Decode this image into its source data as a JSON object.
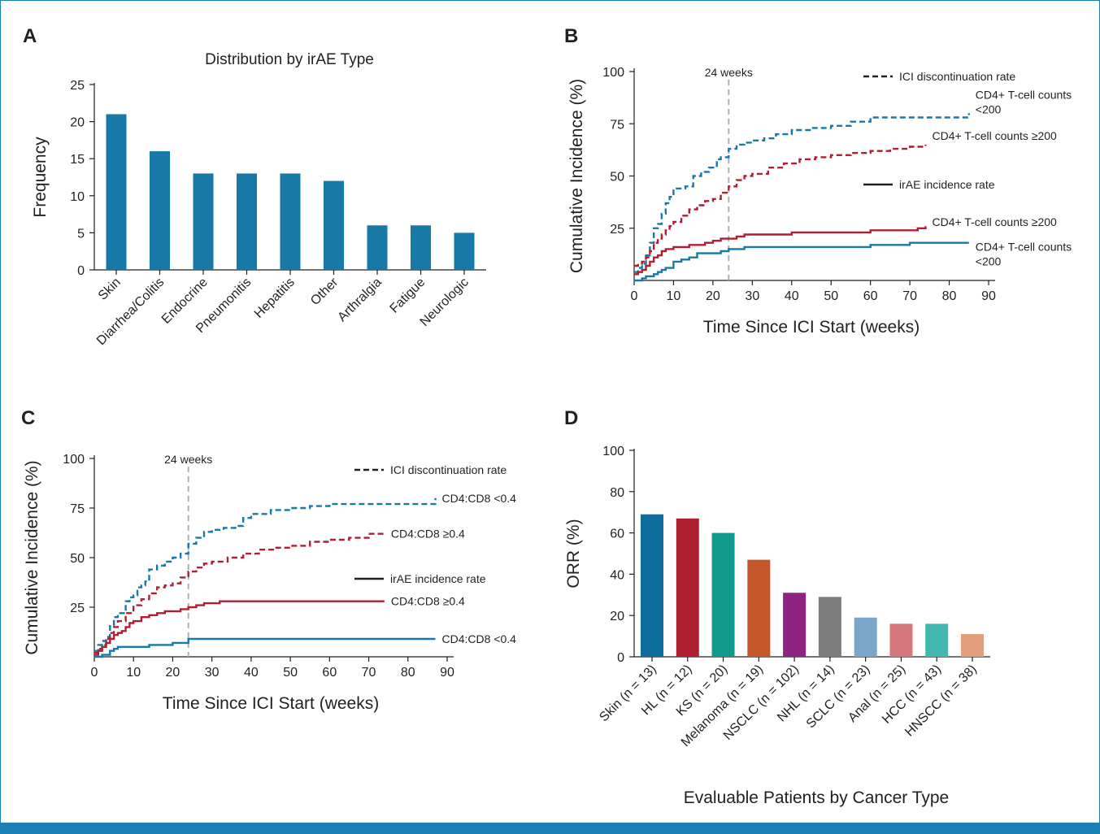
{
  "panels": {
    "a": {
      "letter": "A"
    },
    "b": {
      "letter": "B"
    },
    "c": {
      "letter": "C"
    },
    "d": {
      "letter": "D"
    }
  },
  "colors": {
    "blue": "#1679a8",
    "red": "#b01e30",
    "text": "#231f20",
    "frame": "#1a7fb4",
    "ref_line": "#aaaaaa"
  },
  "chart_data": [
    {
      "id": "A",
      "type": "bar",
      "title": "Distribution by irAE Type",
      "xlabel": "",
      "ylabel": "Frequency",
      "ylim": [
        0,
        25
      ],
      "yticks": [
        0,
        5,
        10,
        15,
        20,
        25
      ],
      "categories": [
        "Skin",
        "Diarrhea/Colitis",
        "Endocrine",
        "Pneumonitis",
        "Hepatitis",
        "Other",
        "Arthralgia",
        "Fatigue",
        "Neurologic"
      ],
      "values": [
        21,
        16,
        13,
        13,
        13,
        12,
        6,
        6,
        5
      ],
      "color": "#1679a8"
    },
    {
      "id": "B",
      "type": "line",
      "xlabel": "Time Since ICI Start (weeks)",
      "ylabel": "Cumulative Incidence (%)",
      "xlim": [
        0,
        90
      ],
      "ylim": [
        0,
        100
      ],
      "xticks": [
        0,
        10,
        20,
        30,
        40,
        50,
        60,
        70,
        80,
        90
      ],
      "yticks": [
        25,
        50,
        75,
        100
      ],
      "reference_line": {
        "x": 24,
        "label": "24 weeks"
      },
      "legend": {
        "dashed_label": "ICI discontinuation rate",
        "solid_label": "irAE incidence rate"
      },
      "series": [
        {
          "name": "CD4+ T-cell counts <200",
          "line_label": [
            "CD4+ T-cell counts",
            "<200"
          ],
          "style": "dashed",
          "color": "#1679a8",
          "x": [
            0,
            1,
            2,
            3,
            4,
            5,
            6,
            7,
            8,
            9,
            10,
            11,
            12,
            13,
            15,
            17,
            19,
            21,
            22,
            24,
            26,
            28,
            30,
            33,
            36,
            40,
            45,
            50,
            55,
            60,
            65,
            70,
            75,
            80,
            84,
            85
          ],
          "y": [
            4,
            6,
            8,
            12,
            18,
            25,
            27,
            32,
            37,
            40,
            44,
            44,
            44,
            45,
            50,
            52,
            54,
            58,
            59,
            63,
            65,
            66,
            67,
            68,
            70,
            72,
            73,
            74,
            76,
            78,
            78,
            78,
            78,
            78,
            78,
            80
          ]
        },
        {
          "name": "CD4+ T-cell counts ≥200",
          "line_label": [
            "CD4+ T-cell counts ≥200"
          ],
          "style": "dashed",
          "color": "#b01e30",
          "x": [
            0,
            1,
            2,
            3,
            4,
            5,
            6,
            7,
            8,
            9,
            10,
            12,
            14,
            16,
            18,
            20,
            22,
            24,
            26,
            28,
            30,
            34,
            38,
            42,
            46,
            50,
            55,
            60,
            65,
            70,
            74
          ],
          "y": [
            7,
            8,
            9,
            11,
            14,
            18,
            20,
            22,
            24,
            26,
            28,
            31,
            34,
            36,
            38,
            39,
            42,
            45,
            48,
            50,
            51,
            54,
            56,
            58,
            59,
            60,
            61,
            62,
            63,
            64,
            65
          ]
        },
        {
          "name": "CD4+ T-cell counts ≥200",
          "line_label": [
            "CD4+ T-cell counts ≥200"
          ],
          "style": "solid",
          "color": "#b01e30",
          "x": [
            0,
            1,
            2,
            3,
            4,
            5,
            6,
            7,
            8,
            10,
            12,
            14,
            16,
            18,
            20,
            22,
            24,
            26,
            28,
            30,
            40,
            50,
            57,
            60,
            70,
            72,
            74
          ],
          "y": [
            3,
            4,
            5,
            7,
            9,
            11,
            12,
            14,
            15,
            16,
            16,
            17,
            17,
            18,
            19,
            20,
            20,
            21,
            22,
            22,
            23,
            23,
            23,
            24,
            24,
            25,
            26
          ]
        },
        {
          "name": "CD4+ T-cell counts <200",
          "line_label": [
            "CD4+ T-cell counts",
            "<200"
          ],
          "style": "solid",
          "color": "#1679a8",
          "x": [
            0,
            2,
            3,
            4,
            5,
            6,
            7,
            8,
            9,
            10,
            12,
            14,
            16,
            18,
            20,
            22,
            24,
            26,
            28,
            40,
            50,
            57,
            60,
            70,
            72,
            85
          ],
          "y": [
            0,
            1,
            2,
            2,
            3,
            4,
            5,
            6,
            6,
            9,
            10,
            11,
            13,
            13,
            13,
            14,
            15,
            15,
            16,
            16,
            16,
            16,
            17,
            18,
            18,
            18
          ]
        }
      ]
    },
    {
      "id": "C",
      "type": "line",
      "xlabel": "Time Since ICI Start (weeks)",
      "ylabel": "Cumulative Incidence (%)",
      "xlim": [
        0,
        90
      ],
      "ylim": [
        0,
        100
      ],
      "xticks": [
        0,
        10,
        20,
        30,
        40,
        50,
        60,
        70,
        80,
        90
      ],
      "yticks": [
        25,
        50,
        75,
        100
      ],
      "reference_line": {
        "x": 24,
        "label": "24 weeks"
      },
      "legend": {
        "dashed_label": "ICI discontinuation rate",
        "solid_label": "irAE incidence rate"
      },
      "series": [
        {
          "name": "CD4:CD8 <0.4",
          "line_label": [
            "CD4:CD8 <0.4"
          ],
          "style": "dashed",
          "color": "#1679a8",
          "x": [
            0,
            1,
            2,
            3,
            4,
            5,
            6,
            8,
            9,
            10,
            11,
            12,
            13,
            14,
            16,
            18,
            20,
            22,
            24,
            26,
            28,
            30,
            33,
            36,
            38,
            40,
            45,
            50,
            55,
            60,
            65,
            70,
            75,
            80,
            84,
            87
          ],
          "y": [
            3,
            6,
            8,
            10,
            16,
            20,
            22,
            28,
            30,
            31,
            35,
            36,
            38,
            44,
            46,
            48,
            50,
            52,
            57,
            60,
            63,
            64,
            65,
            66,
            70,
            72,
            74,
            75,
            76,
            77,
            77,
            77,
            77,
            77,
            77,
            80
          ]
        },
        {
          "name": "CD4:CD8 ≥0.4",
          "line_label": [
            "CD4:CD8 ≥0.4"
          ],
          "style": "dashed",
          "color": "#b01e30",
          "x": [
            0,
            1,
            2,
            3,
            4,
            5,
            6,
            8,
            10,
            12,
            14,
            16,
            18,
            20,
            22,
            24,
            26,
            28,
            30,
            34,
            38,
            42,
            46,
            50,
            55,
            60,
            65,
            70,
            74
          ],
          "y": [
            2,
            4,
            6,
            9,
            12,
            15,
            18,
            22,
            26,
            29,
            32,
            35,
            36,
            37,
            40,
            43,
            45,
            47,
            48,
            50,
            52,
            54,
            55,
            56,
            58,
            59,
            60,
            62,
            62
          ]
        },
        {
          "name": "CD4:CD8 ≥0.4",
          "line_label": [
            "CD4:CD8 ≥0.4"
          ],
          "style": "solid",
          "color": "#b01e30",
          "x": [
            0,
            1,
            2,
            3,
            4,
            5,
            6,
            7,
            8,
            9,
            10,
            12,
            14,
            16,
            18,
            20,
            22,
            24,
            26,
            28,
            30,
            32,
            40,
            50,
            60,
            70,
            74
          ],
          "y": [
            1,
            3,
            5,
            7,
            9,
            11,
            12,
            13,
            15,
            17,
            18,
            20,
            21,
            22,
            23,
            23,
            24,
            25,
            26,
            27,
            27,
            28,
            28,
            28,
            28,
            28,
            28
          ]
        },
        {
          "name": "CD4:CD8 <0.4",
          "line_label": [
            "CD4:CD8 <0.4"
          ],
          "style": "solid",
          "color": "#1679a8",
          "x": [
            0,
            2,
            4,
            5,
            6,
            10,
            13,
            14,
            16,
            20,
            22,
            24,
            40,
            60,
            80,
            87
          ],
          "y": [
            0,
            1,
            3,
            4,
            5,
            5,
            5,
            6,
            6,
            7,
            7,
            9,
            9,
            9,
            9,
            9
          ]
        }
      ]
    },
    {
      "id": "D",
      "type": "bar",
      "xlabel": "Evaluable Patients by Cancer Type",
      "ylabel": "ORR (%)",
      "ylim": [
        0,
        100
      ],
      "yticks": [
        0,
        20,
        40,
        60,
        80,
        100
      ],
      "categories": [
        "Skin (n = 13)",
        "HL (n = 12)",
        "KS (n = 20)",
        "Melanoma (n = 19)",
        "NSCLC (n = 102)",
        "NHL (n = 14)",
        "SCLC (n = 23)",
        "Anal (n = 25)",
        "HCC (n = 43)",
        "HNSCC (n = 38)"
      ],
      "values": [
        69,
        67,
        60,
        47,
        31,
        29,
        19,
        16,
        16,
        11
      ],
      "colors": [
        "#0d6e9e",
        "#ad1f2e",
        "#119a8b",
        "#c4572a",
        "#8e2381",
        "#7c7c7c",
        "#7aa7c9",
        "#d6787b",
        "#42b9b0",
        "#e39d7b"
      ]
    }
  ]
}
